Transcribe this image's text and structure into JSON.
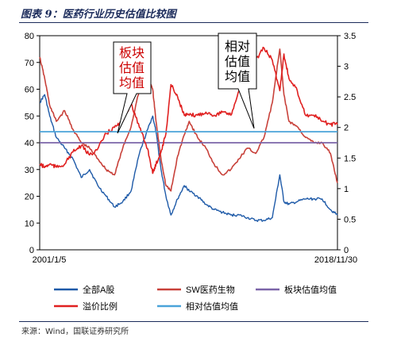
{
  "figure": {
    "title": "图表 9：医药行业历史估值比较图",
    "source": "来源：Wind，国联证券研究所"
  },
  "chart_data": {
    "type": "line",
    "x_range": [
      "2001/1/5",
      "2018/11/30"
    ],
    "x_tick_labels": [
      "2001/1/5",
      "2018/11/30"
    ],
    "y_left": {
      "range": [
        0,
        80
      ],
      "ticks": [
        "0",
        "10",
        "20",
        "30",
        "40",
        "50",
        "60",
        "70",
        "80"
      ]
    },
    "y_right": {
      "range": [
        0,
        3.5
      ],
      "ticks": [
        "0",
        "0.5",
        "1",
        "1.5",
        "2",
        "2.5",
        "3",
        "3.5"
      ]
    },
    "grid": false,
    "legend_placement": "bottom",
    "annotations": [
      {
        "text_lines": [
          "板块",
          "估值",
          "均值"
        ],
        "color": "#cc0000"
      },
      {
        "text_lines": [
          "相对",
          "估值",
          "均值"
        ],
        "color": "#000000"
      }
    ],
    "series": [
      {
        "name": "全部A股",
        "axis": "left",
        "color": "#1e5aa8",
        "x": [
          2001.0,
          2001.3,
          2001.6,
          2002.0,
          2002.5,
          2003.0,
          2003.5,
          2004.0,
          2004.5,
          2005.0,
          2005.5,
          2006.0,
          2006.5,
          2007.0,
          2007.5,
          2007.8,
          2008.0,
          2008.3,
          2008.6,
          2008.9,
          2009.3,
          2009.7,
          2010.0,
          2010.5,
          2011.0,
          2011.5,
          2012.0,
          2012.5,
          2013.0,
          2013.5,
          2014.0,
          2014.5,
          2015.0,
          2015.45,
          2015.7,
          2016.0,
          2016.5,
          2017.0,
          2017.5,
          2018.0,
          2018.5,
          2018.92
        ],
        "y": [
          55,
          58,
          50,
          42,
          38,
          34,
          27,
          30,
          24,
          20,
          16,
          18,
          22,
          36,
          45,
          50,
          44,
          30,
          20,
          13,
          19,
          24,
          22,
          20,
          17,
          15,
          14,
          13,
          13,
          12,
          11,
          11,
          12,
          28,
          18,
          17,
          18,
          19,
          19,
          19,
          15,
          13
        ]
      },
      {
        "name": "SW医药生物",
        "axis": "left",
        "color": "#c8413a",
        "x": [
          2001.0,
          2001.3,
          2001.6,
          2002.0,
          2002.5,
          2003.0,
          2003.5,
          2004.0,
          2004.5,
          2005.0,
          2005.5,
          2006.0,
          2006.5,
          2007.0,
          2007.5,
          2007.8,
          2008.0,
          2008.3,
          2008.6,
          2008.9,
          2009.3,
          2009.7,
          2010.0,
          2010.5,
          2011.0,
          2011.5,
          2012.0,
          2012.5,
          2013.0,
          2013.5,
          2014.0,
          2014.5,
          2015.0,
          2015.45,
          2015.7,
          2016.0,
          2016.5,
          2017.0,
          2017.5,
          2018.0,
          2018.5,
          2018.92
        ],
        "y": [
          72,
          64,
          54,
          48,
          52,
          45,
          40,
          38,
          34,
          30,
          28,
          38,
          46,
          60,
          64,
          60,
          48,
          34,
          24,
          22,
          35,
          43,
          48,
          42,
          38,
          32,
          28,
          30,
          34,
          38,
          36,
          42,
          55,
          75,
          58,
          48,
          46,
          42,
          40,
          40,
          36,
          25
        ]
      },
      {
        "name": "板块估值均值",
        "axis": "left",
        "color": "#7b64a8",
        "x": [
          2001.0,
          2018.92
        ],
        "y": [
          40,
          40
        ]
      },
      {
        "name": "溢价比例",
        "axis": "right",
        "color": "#e02020",
        "x": [
          2001.0,
          2001.3,
          2001.6,
          2002.0,
          2002.5,
          2003.0,
          2003.5,
          2004.0,
          2004.5,
          2005.0,
          2005.5,
          2006.0,
          2006.5,
          2007.0,
          2007.5,
          2007.8,
          2008.0,
          2008.3,
          2008.6,
          2008.9,
          2009.3,
          2009.7,
          2010.0,
          2010.5,
          2011.0,
          2011.5,
          2012.0,
          2012.5,
          2013.0,
          2013.5,
          2014.0,
          2014.5,
          2015.0,
          2015.45,
          2015.7,
          2016.0,
          2016.5,
          2017.0,
          2017.5,
          2018.0,
          2018.5,
          2018.92
        ],
        "y": [
          1.4,
          1.35,
          1.4,
          1.35,
          1.4,
          1.6,
          1.7,
          1.55,
          1.65,
          1.9,
          2.0,
          2.1,
          2.4,
          2.0,
          1.65,
          1.25,
          1.4,
          1.6,
          1.9,
          2.7,
          2.5,
          2.2,
          2.2,
          2.2,
          2.25,
          2.2,
          2.25,
          2.2,
          2.6,
          2.9,
          3.1,
          3.3,
          3.1,
          2.6,
          3.2,
          2.8,
          2.6,
          2.2,
          2.2,
          2.1,
          2.05,
          2.05
        ]
      },
      {
        "name": "相对估值均值",
        "axis": "right",
        "color": "#4aa3d9",
        "x": [
          2001.0,
          2018.92
        ],
        "y": [
          1.93,
          1.93
        ]
      }
    ]
  }
}
